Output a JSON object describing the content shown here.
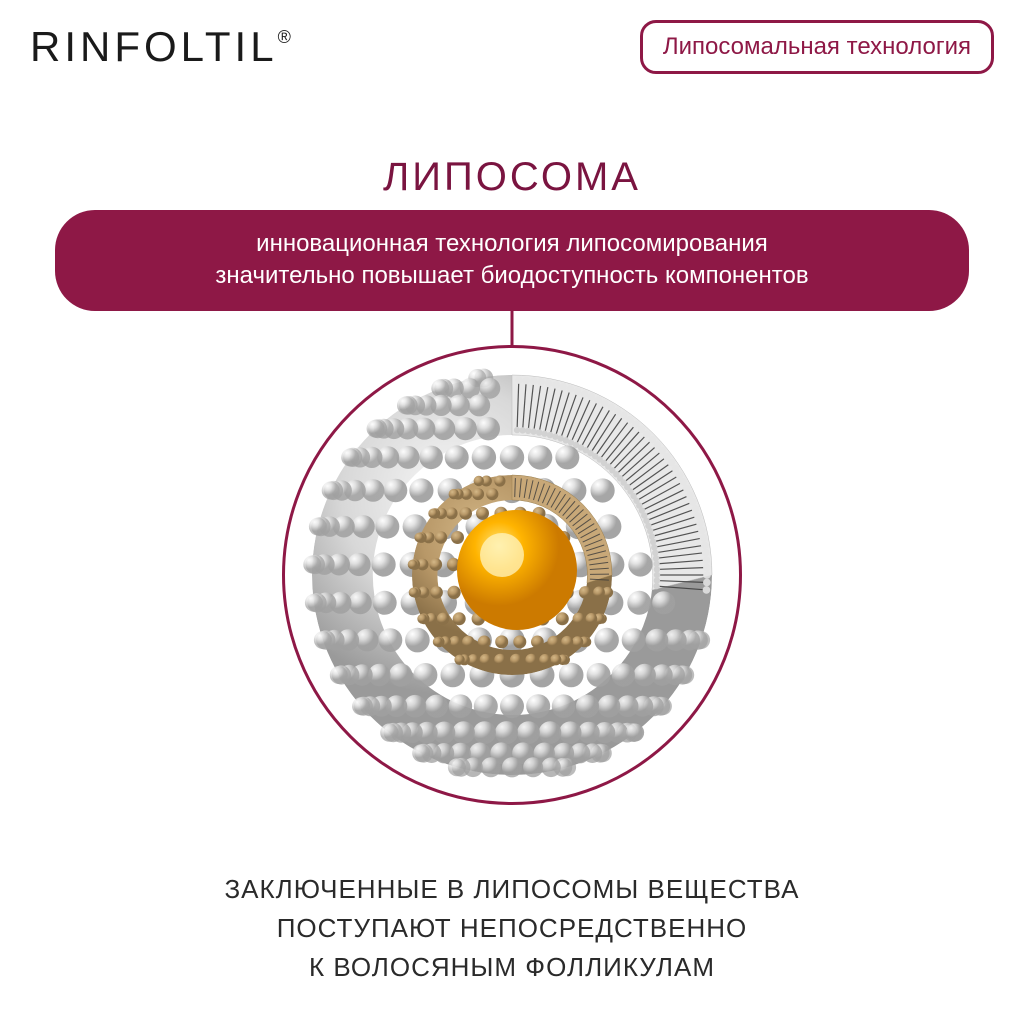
{
  "colors": {
    "brand_text": "#1a1a1a",
    "accent": "#8e1846",
    "accent_dark": "#7a1440",
    "pill_bg": "#8e1846",
    "pill_text": "#ffffff",
    "ring": "#8e1846",
    "body_text": "#2a2a2a",
    "background": "#ffffff"
  },
  "header": {
    "brand": "RINFOLTIL",
    "registered": "®",
    "tech_badge": "Липосомальная технология"
  },
  "title": "ЛИПОСОМА",
  "pill": {
    "line1": "инновационная технология липосомирования",
    "line2": "значительно повышает биодоступность компонентов"
  },
  "liposome": {
    "outer_sphere_color": "#d8d8d8",
    "outer_sphere_highlight": "#f5f5f5",
    "outer_sphere_shadow": "#a8a8a8",
    "filament_color": "#3a3a3a",
    "inner_shell_color": "#b89868",
    "inner_shell_highlight": "#d4b888",
    "core_color": "#ffb400",
    "core_highlight": "#ffe680",
    "core_shadow": "#cc7a00"
  },
  "bottom": {
    "line1": "ЗАКЛЮЧЕННЫЕ В ЛИПОСОМЫ ВЕЩЕСТВА",
    "line2": "ПОСТУПАЮТ НЕПОСРЕДСТВЕННО",
    "line3": "К ВОЛОСЯНЫМ ФОЛЛИКУЛАМ"
  }
}
